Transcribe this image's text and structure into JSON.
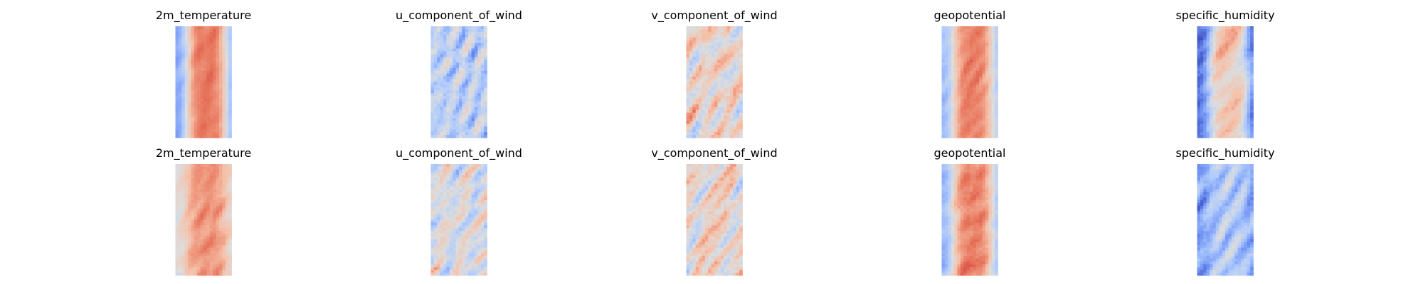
{
  "figure": {
    "background": "#ffffff"
  },
  "chart_data": {
    "type": "heatmap",
    "layout": "grid of 2 rows x 5 columns",
    "axes_visible": false,
    "colormap": "coolwarm",
    "colormap_stops": [
      "#3b4cc0",
      "#7396f5",
      "#b0cbfc",
      "#dddddd",
      "#f6bfa6",
      "#e7745b",
      "#b40426"
    ],
    "variables": [
      "2m_temperature",
      "u_component_of_wind",
      "v_component_of_wind",
      "geopotential",
      "specific_humidity"
    ],
    "panels": [
      {
        "row": 0,
        "title": "2m_temperature",
        "field": {
          "profile": "warm-core",
          "base": 0.82,
          "edge": 0.22,
          "noise": 0.07,
          "seed": 11
        }
      },
      {
        "row": 0,
        "title": "u_component_of_wind",
        "field": {
          "profile": "streaks",
          "base": 0.38,
          "edge": 0.42,
          "noise": 0.3,
          "seed": 23
        }
      },
      {
        "row": 0,
        "title": "v_component_of_wind",
        "field": {
          "profile": "swirl",
          "base": 0.55,
          "edge": 0.58,
          "noise": 0.32,
          "seed": 37
        }
      },
      {
        "row": 0,
        "title": "geopotential",
        "field": {
          "profile": "warm-core",
          "base": 0.8,
          "edge": 0.3,
          "noise": 0.09,
          "seed": 41
        }
      },
      {
        "row": 0,
        "title": "specific_humidity",
        "field": {
          "profile": "moist-core",
          "base": 0.62,
          "edge": 0.08,
          "noise": 0.18,
          "seed": 53
        }
      },
      {
        "row": 1,
        "title": "2m_temperature",
        "field": {
          "profile": "warm-core",
          "base": 0.76,
          "edge": 0.52,
          "noise": 0.1,
          "seed": 61
        }
      },
      {
        "row": 1,
        "title": "u_component_of_wind",
        "field": {
          "profile": "streaks",
          "base": 0.48,
          "edge": 0.45,
          "noise": 0.3,
          "seed": 71
        }
      },
      {
        "row": 1,
        "title": "v_component_of_wind",
        "field": {
          "profile": "swirl",
          "base": 0.56,
          "edge": 0.57,
          "noise": 0.33,
          "seed": 83
        }
      },
      {
        "row": 1,
        "title": "geopotential",
        "field": {
          "profile": "warm-core",
          "base": 0.8,
          "edge": 0.28,
          "noise": 0.12,
          "seed": 97
        }
      },
      {
        "row": 1,
        "title": "specific_humidity",
        "field": {
          "profile": "moist-core",
          "base": 0.35,
          "edge": 0.2,
          "noise": 0.22,
          "seed": 103
        }
      }
    ]
  }
}
